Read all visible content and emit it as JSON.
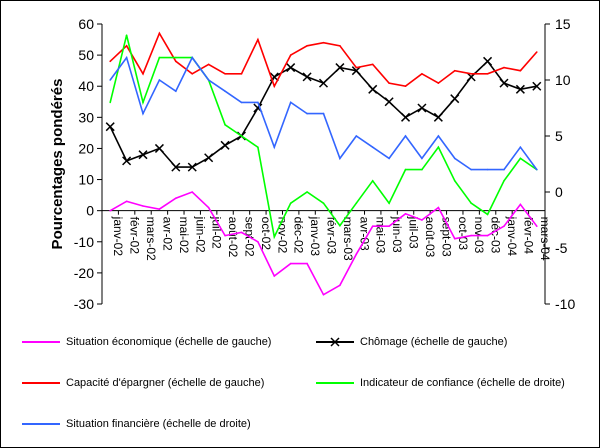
{
  "chart_data": {
    "type": "line",
    "ylabel": "Pourcentages pondérés",
    "categories": [
      "janv-02",
      "févr-02",
      "mars-02",
      "avr-02",
      "mai-02",
      "juin-02",
      "juil-02",
      "août-02",
      "sept-02",
      "oct-02",
      "nov-02",
      "déc-02",
      "janv-03",
      "févr-03",
      "mars-03",
      "avr-03",
      "mai-03",
      "juin-03",
      "juil-03",
      "août-03",
      "sept-03",
      "oct-03",
      "nov-03",
      "déc-03",
      "janv-04",
      "févr-04",
      "mars-04"
    ],
    "left_axis": {
      "ylim": [
        -30,
        60
      ],
      "ticks": [
        -30,
        -20,
        -10,
        0,
        10,
        20,
        30,
        40,
        50,
        60
      ]
    },
    "right_axis": {
      "ylim": [
        -10,
        15
      ],
      "ticks": [
        -10,
        -5,
        0,
        5,
        10,
        15
      ]
    },
    "series": [
      {
        "name": "Situation économique (échelle de gauche)",
        "axis": "left",
        "color": "#ff00ff",
        "marker": "none",
        "values": [
          0,
          3,
          1.5,
          0.5,
          4,
          6,
          1,
          -8,
          -7,
          -10,
          -21,
          -17,
          -17,
          -27,
          -24,
          -14,
          -5,
          -5,
          -1,
          -3,
          1,
          -9,
          -8,
          -8,
          -5,
          2,
          -5
        ]
      },
      {
        "name": "Chômage (échelle de gauche)",
        "axis": "left",
        "color": "#000000",
        "marker": "x",
        "values": [
          27,
          16,
          18,
          20,
          14,
          14,
          17,
          21,
          24,
          33,
          43,
          46,
          43,
          41,
          46,
          45,
          39,
          35,
          30,
          33,
          30,
          36,
          43,
          48,
          41,
          39,
          40
        ]
      },
      {
        "name": "Capacité d'épargner (échelle de gauche)",
        "axis": "left",
        "color": "#ff0000",
        "marker": "none",
        "values": [
          48,
          53,
          44,
          57,
          48,
          44,
          47,
          44,
          44,
          55,
          40,
          50,
          53,
          54,
          53,
          46,
          47,
          41,
          40,
          44,
          41,
          45,
          44,
          44,
          46,
          45,
          51
        ]
      },
      {
        "name": "Indicateur de confiance (échelle de droite)",
        "axis": "right",
        "color": "#00ff00",
        "marker": "none",
        "values": [
          8,
          14,
          8,
          12,
          12,
          12,
          10,
          6,
          5,
          4,
          -4,
          -1,
          0,
          -1,
          -3,
          -1,
          1,
          -1,
          2,
          2,
          4,
          1,
          -1,
          -2,
          1,
          3,
          2
        ]
      },
      {
        "name": "Situation financière (échelle de droite)",
        "axis": "right",
        "color": "#3366ff",
        "marker": "none",
        "values": [
          10,
          12,
          7,
          10,
          9,
          12,
          10,
          9,
          8,
          8,
          4,
          8,
          7,
          7,
          3,
          5,
          4,
          3,
          5,
          3,
          5,
          3,
          2,
          2,
          2,
          4,
          2
        ]
      }
    ],
    "legend": [
      {
        "label": "Situation économique (échelle de gauche)",
        "color": "#ff00ff",
        "marker": "none"
      },
      {
        "label": "Chômage (échelle de gauche)",
        "color": "#000000",
        "marker": "x"
      },
      {
        "label": "Capacité d'épargner (échelle de gauche)",
        "color": "#ff0000",
        "marker": "none"
      },
      {
        "label": "Indicateur de confiance (échelle de droite)",
        "color": "#00ff00",
        "marker": "none"
      },
      {
        "label": "Situation financière (échelle de droite)",
        "color": "#3366ff",
        "marker": "none"
      }
    ],
    "grid": false
  }
}
